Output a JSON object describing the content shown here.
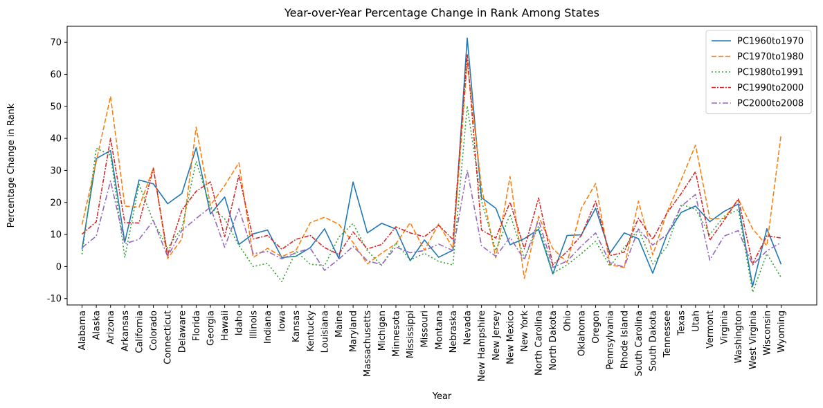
{
  "chart_data": {
    "type": "line",
    "title": "Year-over-Year Percentage Change in Rank Among States",
    "xlabel": "Year",
    "ylabel": "Percentage Change in Rank",
    "ylim": [
      -12,
      75
    ],
    "yticks": [
      -10,
      0,
      10,
      20,
      30,
      40,
      50,
      60,
      70
    ],
    "grid": false,
    "legend_position": "top-right",
    "categories": [
      "Alabama",
      "Alaska",
      "Arizona",
      "Arkansas",
      "California",
      "Colorado",
      "Connecticut",
      "Delaware",
      "Florida",
      "Georgia",
      "Hawaii",
      "Idaho",
      "Illinois",
      "Indiana",
      "Iowa",
      "Kansas",
      "Kentucky",
      "Louisiana",
      "Maine",
      "Maryland",
      "Massachusetts",
      "Michigan",
      "Minnesota",
      "Mississippi",
      "Missouri",
      "Montana",
      "Nebraska",
      "Nevada",
      "New Hampshire",
      "New Jersey",
      "New Mexico",
      "New York",
      "North Carolina",
      "North Dakota",
      "Ohio",
      "Oklahoma",
      "Oregon",
      "Pennsylvania",
      "Rhode Island",
      "South Carolina",
      "South Dakota",
      "Tennessee",
      "Texas",
      "Utah",
      "Vermont",
      "Virginia",
      "Washington",
      "West Virginia",
      "Wisconsin",
      "Wyoming"
    ],
    "series": [
      {
        "name": "PC1960to1970",
        "color": "#1f77b4",
        "dash": "solid",
        "values": [
          5.4,
          33.7,
          36.2,
          7.6,
          27.0,
          25.8,
          19.6,
          22.8,
          37.1,
          16.4,
          21.7,
          6.9,
          10.2,
          11.4,
          2.8,
          3.2,
          5.9,
          11.8,
          2.5,
          26.4,
          10.5,
          13.5,
          11.7,
          1.8,
          8.3,
          2.9,
          5.1,
          71.3,
          21.5,
          18.2,
          6.8,
          8.7,
          11.6,
          -2.3,
          9.7,
          9.9,
          18.2,
          4.2,
          10.5,
          8.7,
          -2.1,
          10.0,
          16.9,
          18.9,
          14.0,
          17.2,
          19.5,
          -6.2,
          11.8,
          0.7
        ]
      },
      {
        "name": "PC1970to1980",
        "color": "#ff7f0e",
        "dash": "7,3",
        "values": [
          13.1,
          32.8,
          53.1,
          18.9,
          18.5,
          30.8,
          2.5,
          8.6,
          43.5,
          19.1,
          25.3,
          32.4,
          2.8,
          5.7,
          3.1,
          5.1,
          13.7,
          15.4,
          13.2,
          7.5,
          0.8,
          4.2,
          7.1,
          13.7,
          5.1,
          13.3,
          5.7,
          63.8,
          24.8,
          2.7,
          28.1,
          -3.7,
          15.7,
          5.6,
          1.3,
          18.2,
          25.9,
          0.6,
          -0.3,
          20.4,
          3.6,
          16.9,
          27.1,
          37.9,
          15.0,
          15.0,
          21.0,
          11.8,
          6.5,
          41.3
        ]
      },
      {
        "name": "PC1980to1991",
        "color": "#2ca02c",
        "dash": "2,3",
        "values": [
          3.8,
          36.9,
          34.8,
          2.8,
          25.7,
          14.0,
          5.8,
          12.1,
          32.8,
          18.6,
          14.9,
          6.6,
          0.0,
          1.0,
          -4.7,
          4.8,
          0.7,
          0.3,
          9.2,
          13.4,
          4.9,
          0.4,
          7.3,
          2.1,
          4.1,
          1.6,
          0.5,
          50.1,
          20.5,
          5.0,
          16.3,
          2.5,
          12.7,
          -2.1,
          0.5,
          4.0,
          7.9,
          0.1,
          5.9,
          11.7,
          0.8,
          6.2,
          19.4,
          17.9,
          10.0,
          15.7,
          17.8,
          -8.0,
          4.0,
          -3.4
        ]
      },
      {
        "name": "PC1990to2000",
        "color": "#d62728",
        "dash": "6,2,2,2",
        "values": [
          10.1,
          14.0,
          40.0,
          13.7,
          13.6,
          30.6,
          3.6,
          17.6,
          23.5,
          26.4,
          9.3,
          28.5,
          8.6,
          9.7,
          5.4,
          8.5,
          9.7,
          5.9,
          3.8,
          10.8,
          5.5,
          6.9,
          12.4,
          10.5,
          9.3,
          12.9,
          8.4,
          66.3,
          11.4,
          8.9,
          20.1,
          5.5,
          21.4,
          0.5,
          4.7,
          9.7,
          20.4,
          3.4,
          4.5,
          15.1,
          8.5,
          16.7,
          22.8,
          29.6,
          8.2,
          14.4,
          21.1,
          0.8,
          9.6,
          8.9
        ]
      },
      {
        "name": "PC2000to2008",
        "color": "#9467bd",
        "dash": "8,3,2,3",
        "values": [
          5.9,
          9.5,
          26.7,
          7.1,
          8.5,
          14.3,
          3.1,
          11.3,
          15.0,
          18.5,
          6.0,
          18.1,
          4.0,
          4.7,
          2.4,
          4.3,
          5.7,
          -1.2,
          2.3,
          6.3,
          1.8,
          0.6,
          6.1,
          4.3,
          5.0,
          7.0,
          5.0,
          30.1,
          6.5,
          3.2,
          9.1,
          2.1,
          14.6,
          -0.3,
          1.7,
          6.4,
          10.5,
          1.2,
          -0.2,
          11.7,
          6.7,
          10.0,
          18.8,
          22.5,
          2.0,
          9.5,
          11.2,
          0.5,
          4.9,
          7.5
        ]
      }
    ]
  }
}
